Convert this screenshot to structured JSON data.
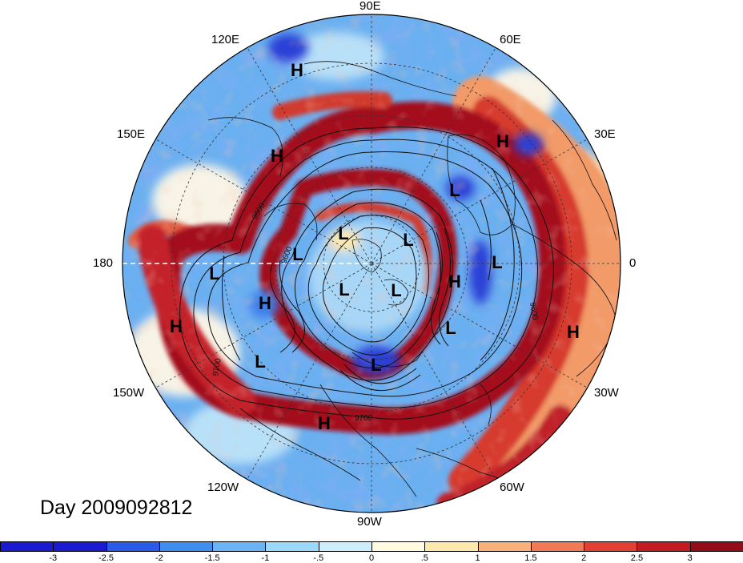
{
  "figure": {
    "day_label": "Day 2009092812",
    "lon_labels": [
      "90E",
      "60E",
      "30E",
      "0",
      "30W",
      "60W",
      "90W",
      "120W",
      "150W",
      "180",
      "150E",
      "120E"
    ]
  },
  "markers": [
    {
      "t": "H"
    },
    {
      "t": "H"
    },
    {
      "t": "H"
    },
    {
      "t": "H"
    },
    {
      "t": "H"
    },
    {
      "t": "H"
    },
    {
      "t": "H"
    },
    {
      "t": "H"
    },
    {
      "t": "L"
    },
    {
      "t": "L"
    },
    {
      "t": "L"
    },
    {
      "t": "L"
    },
    {
      "t": "L"
    },
    {
      "t": "L"
    },
    {
      "t": "L"
    },
    {
      "t": "L"
    },
    {
      "t": "L"
    },
    {
      "t": "L"
    },
    {
      "t": "L"
    }
  ],
  "contour_labels": [
    "9600",
    "9600",
    "9700",
    "9700",
    "9600"
  ],
  "colorbar": {
    "tick_labels": [
      "-3",
      "-2.5",
      "-2",
      "-1.5",
      "-1",
      "-.5",
      "0",
      ".5",
      "1",
      "1.5",
      "2",
      "2.5",
      "3"
    ],
    "colors": [
      "#1a1ad0",
      "#2a5ae8",
      "#3e8ef0",
      "#6ab4f5",
      "#9cd8fa",
      "#cdeefc",
      "#fffbe0",
      "#fde9ad",
      "#f9b07a",
      "#f07a55",
      "#e43f35",
      "#c41a22",
      "#930d18"
    ]
  },
  "palette": {
    "deep_red": "#9e0d18",
    "red": "#d93a30",
    "orange": "#f59a6a",
    "light_orange": "#fcd9b0",
    "pale": "#f4f2e8",
    "light_blue": "#b8e0f8",
    "blue": "#5aa4ee",
    "deep_blue": "#2a3fd6",
    "coast": "#111111",
    "background": "#ffffff"
  }
}
